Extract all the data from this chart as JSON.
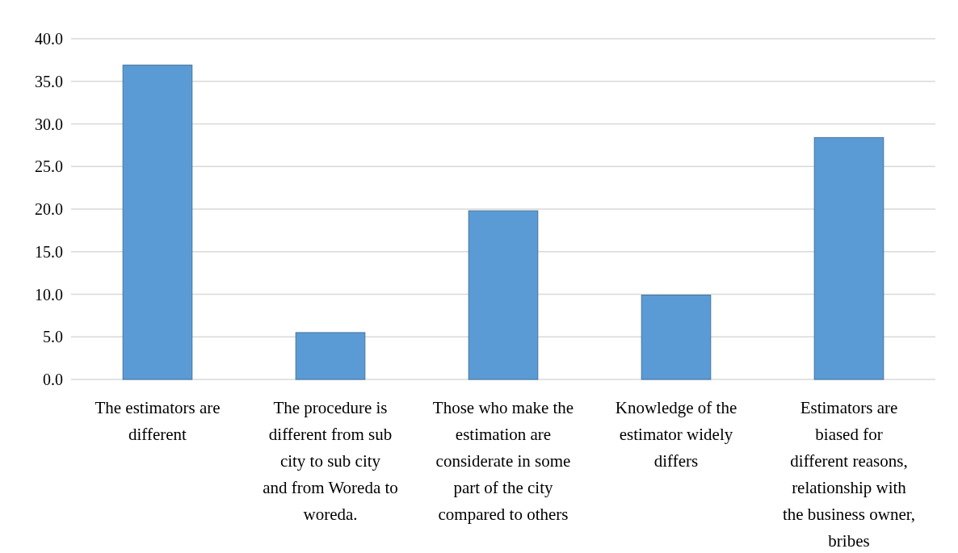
{
  "chart_data": {
    "type": "bar",
    "categories": [
      "The estimators are different",
      "The procedure is different from sub city to sub city and from Woreda to woreda.",
      "Those who make the estimation are considerate in some part of the city compared to others",
      "Knowledge of the estimator widely differs",
      "Estimators are biased for different reasons, relationship with the business owner, bribes"
    ],
    "values": [
      36.9,
      5.5,
      19.8,
      9.9,
      28.4
    ],
    "color": "#5b9bd5",
    "ylim": [
      0,
      40
    ],
    "yticks": [
      {
        "value": 0,
        "label": "0.0"
      },
      {
        "value": 5,
        "label": "5.0"
      },
      {
        "value": 10,
        "label": "10.0"
      },
      {
        "value": 15,
        "label": "15.0"
      },
      {
        "value": 20,
        "label": "20.0"
      },
      {
        "value": 25,
        "label": "25.0"
      },
      {
        "value": 30,
        "label": "30.0"
      },
      {
        "value": 35,
        "label": "35.0"
      },
      {
        "value": 40,
        "label": "40.0"
      }
    ],
    "grid": true
  }
}
